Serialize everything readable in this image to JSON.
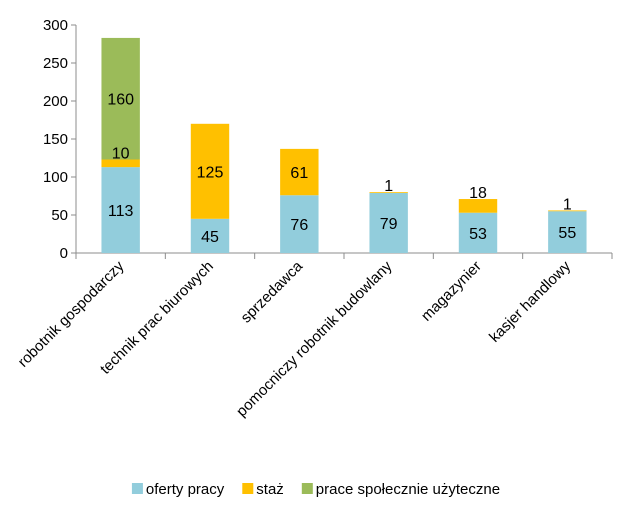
{
  "chart_data": {
    "type": "bar",
    "stacked": true,
    "title": "",
    "xlabel": "",
    "ylabel": "",
    "ylim": [
      0,
      300
    ],
    "yticks": [
      0,
      50,
      100,
      150,
      200,
      250,
      300
    ],
    "grid": false,
    "legend_position": "bottom",
    "categories": [
      "robotnik gospodarczy",
      "technik prac biurowych",
      "sprzedawca",
      "pomocniczy robotnik budowlany",
      "magazynier",
      "kasjer handlowy"
    ],
    "series": [
      {
        "name": "oferty pracy",
        "color": "#92CDDC",
        "values": [
          113,
          45,
          76,
          79,
          53,
          55
        ]
      },
      {
        "name": "staż",
        "color": "#FFC000",
        "values": [
          10,
          125,
          61,
          1,
          18,
          1
        ]
      },
      {
        "name": "prace społecznie użyteczne",
        "color": "#9BBB59",
        "values": [
          160,
          0,
          0,
          0,
          0,
          0
        ]
      }
    ]
  }
}
